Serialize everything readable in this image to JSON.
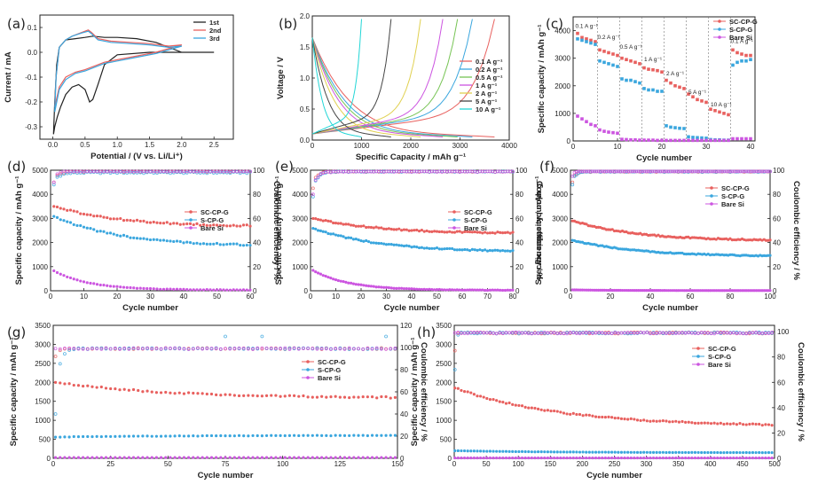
{
  "figure": {
    "panels": [
      "(a)",
      "(b)",
      "(c)",
      "(d)",
      "(e)",
      "(f)",
      "(g)",
      "(h)"
    ]
  },
  "colors": {
    "sc": "#e8605e",
    "s": "#3aa6de",
    "bare": "#cc55e0",
    "black": "#222222"
  },
  "chart_data": [
    {
      "id": "a",
      "type": "line",
      "xlabel": "Potential / (V vs. Li/Li⁺)",
      "ylabel": "Current / mA",
      "xlim": [
        -0.2,
        2.8
      ],
      "ylim": [
        -0.35,
        0.15
      ],
      "xticks": [
        "0.0",
        "0.5",
        "1.0",
        "1.5",
        "2.0",
        "2.5"
      ],
      "yticks": [
        "-0.3",
        "-0.2",
        "-0.1",
        "0.0",
        "0.1"
      ],
      "legend": [
        "1st",
        "2nd",
        "3rd"
      ],
      "series": [
        {
          "name": "1st",
          "color": "#222222",
          "x": [
            2.5,
            2.0,
            1.5,
            1.0,
            0.8,
            0.7,
            0.62,
            0.57,
            0.5,
            0.4,
            0.3,
            0.2,
            0.12,
            0.07,
            0.03,
            0.01,
            0.03,
            0.06,
            0.1,
            0.2,
            0.35,
            0.5,
            0.62,
            0.8,
            1.0,
            1.3,
            1.6,
            1.8,
            2.0
          ],
          "y": [
            0.0,
            0.0,
            0.0,
            -0.01,
            -0.05,
            -0.13,
            -0.19,
            -0.2,
            -0.15,
            -0.13,
            -0.14,
            -0.17,
            -0.22,
            -0.26,
            -0.3,
            -0.33,
            -0.2,
            -0.05,
            0.02,
            0.05,
            0.055,
            0.06,
            0.065,
            0.06,
            0.06,
            0.055,
            0.04,
            0.02,
            0.0
          ]
        },
        {
          "name": "2nd",
          "color": "#e8605e",
          "x": [
            2.0,
            1.6,
            1.2,
            0.8,
            0.5,
            0.35,
            0.2,
            0.1,
            0.03,
            0.05,
            0.1,
            0.2,
            0.3,
            0.45,
            0.55,
            0.6,
            0.7,
            0.9,
            1.2,
            1.5,
            1.8,
            2.0
          ],
          "y": [
            0.03,
            0.0,
            -0.02,
            -0.04,
            -0.07,
            -0.08,
            -0.1,
            -0.14,
            -0.22,
            -0.1,
            0.02,
            0.05,
            0.065,
            0.08,
            0.09,
            0.08,
            0.055,
            0.045,
            0.04,
            0.035,
            0.025,
            0.03
          ]
        },
        {
          "name": "3rd",
          "color": "#3aa6de",
          "x": [
            2.0,
            1.6,
            1.2,
            0.8,
            0.5,
            0.35,
            0.2,
            0.1,
            0.03,
            0.05,
            0.1,
            0.2,
            0.3,
            0.45,
            0.55,
            0.6,
            0.7,
            0.9,
            1.2,
            1.5,
            1.8,
            2.0
          ],
          "y": [
            0.025,
            -0.005,
            -0.025,
            -0.045,
            -0.075,
            -0.085,
            -0.11,
            -0.15,
            -0.24,
            -0.1,
            0.02,
            0.05,
            0.065,
            0.078,
            0.085,
            0.075,
            0.05,
            0.04,
            0.035,
            0.03,
            0.02,
            0.025
          ]
        }
      ]
    },
    {
      "id": "b",
      "type": "line",
      "xlabel": "Specific Capacity / mAh g⁻¹",
      "ylabel": "Voltage / V",
      "xlim": [
        0,
        4000
      ],
      "ylim": [
        0,
        2.0
      ],
      "xticks": [
        "0",
        "1000",
        "2000",
        "3000",
        "4000"
      ],
      "yticks": [
        "0.0",
        "0.5",
        "1.0",
        "1.5",
        "2.0"
      ],
      "legend": [
        "0.1 A g⁻¹",
        "0.2 A g⁻¹",
        "0.5 A g⁻¹",
        "1 A g⁻¹",
        "2 A g⁻¹",
        "5 A g⁻¹",
        "10 A g⁻¹"
      ],
      "series": [
        {
          "name": "0.1 A g⁻¹",
          "color": "#e8605e",
          "capacity": 3700
        },
        {
          "name": "0.2 A g⁻¹",
          "color": "#3aa6de",
          "capacity": 3250
        },
        {
          "name": "0.5 A g⁻¹",
          "color": "#77c455",
          "capacity": 2950
        },
        {
          "name": "1 A g⁻¹",
          "color": "#cc55e0",
          "capacity": 2650
        },
        {
          "name": "2 A g⁻¹",
          "color": "#e0d050",
          "capacity": 2200
        },
        {
          "name": "5 A g⁻¹",
          "color": "#444444",
          "capacity": 1600
        },
        {
          "name": "10 A g⁻¹",
          "color": "#22d6d6",
          "capacity": 1000
        }
      ]
    },
    {
      "id": "c",
      "type": "scatter",
      "xlabel": "Cycle number",
      "ylabel": "Specific capacity / mAh g⁻¹",
      "xlim": [
        0,
        41
      ],
      "ylim": [
        0,
        4500
      ],
      "xticks": [
        "0",
        "10",
        "20",
        "30",
        "40"
      ],
      "yticks": [
        "0",
        "1000",
        "2000",
        "3000",
        "4000"
      ],
      "legend": [
        "SC-CP-G",
        "S-CP-G",
        "Bare Si"
      ],
      "annotations": [
        "0.1 A g⁻¹",
        "0.2 A g⁻¹",
        "0.5 A g⁻¹",
        "1 A g⁻¹",
        "2 A g⁻¹",
        "5 A g⁻¹",
        "10 A g⁻¹",
        "0.1 A g⁻¹"
      ],
      "series": [
        {
          "name": "SC-CP-G",
          "color": "#e8605e",
          "y": [
            3900,
            3750,
            3700,
            3650,
            3600,
            3300,
            3250,
            3200,
            3150,
            3100,
            3000,
            2950,
            2900,
            2850,
            2800,
            2650,
            2600,
            2580,
            2550,
            2500,
            2200,
            2100,
            2000,
            1950,
            1900,
            1700,
            1600,
            1500,
            1450,
            1400,
            1150,
            1100,
            1050,
            1000,
            950,
            3300,
            3200,
            3150,
            3100,
            3100
          ]
        },
        {
          "name": "S-CP-G",
          "color": "#3aa6de",
          "y": [
            3700,
            3650,
            3600,
            3550,
            3500,
            2900,
            2850,
            2800,
            2750,
            2700,
            2250,
            2200,
            2200,
            2150,
            2100,
            1900,
            1850,
            1850,
            1800,
            1800,
            550,
            500,
            480,
            460,
            450,
            150,
            130,
            120,
            110,
            100,
            50,
            40,
            40,
            30,
            30,
            2750,
            2850,
            2900,
            2900,
            2950
          ]
        },
        {
          "name": "Bare Si",
          "color": "#cc55e0",
          "y": [
            900,
            800,
            700,
            600,
            550,
            400,
            350,
            320,
            300,
            280,
            60,
            50,
            40,
            40,
            30,
            30,
            30,
            30,
            20,
            20,
            20,
            20,
            20,
            20,
            20,
            20,
            20,
            20,
            20,
            20,
            20,
            20,
            20,
            20,
            20,
            80,
            80,
            80,
            80,
            80
          ]
        }
      ]
    },
    {
      "id": "d",
      "type": "scatter",
      "xlabel": "Cycle number",
      "ylabel": "Specific capacity / mAh g⁻¹",
      "y2label": "Coulombic efficiency / %",
      "xlim": [
        0,
        60
      ],
      "ylim": [
        0,
        5000
      ],
      "y2lim": [
        0,
        100
      ],
      "xticks": [
        "0",
        "10",
        "20",
        "30",
        "40",
        "50",
        "60"
      ],
      "yticks": [
        "0",
        "1000",
        "2000",
        "3000",
        "4000",
        "5000"
      ],
      "y2ticks": [
        "0",
        "20",
        "40",
        "60",
        "80",
        "100"
      ],
      "legend": [
        "SC-CP-G",
        "S-CP-G",
        "Bare Si"
      ],
      "capacity": {
        "SC-CP-G": [
          3500,
          2700
        ],
        "S-CP-G": [
          3100,
          1900
        ],
        "Bare Si": [
          900,
          30
        ]
      },
      "efficiency": {
        "SC-CP-G": [
          90,
          99
        ],
        "S-CP-G": [
          88,
          98
        ],
        "Bare Si": [
          90,
          101
        ]
      }
    },
    {
      "id": "e",
      "type": "scatter",
      "xlabel": "Cycle number",
      "ylabel": "Specific capacity / mAh g⁻¹",
      "y2label": "Coulombic efficiency / %",
      "xlim": [
        0,
        80
      ],
      "ylim": [
        0,
        5000
      ],
      "y2lim": [
        0,
        100
      ],
      "xticks": [
        "0",
        "10",
        "20",
        "30",
        "40",
        "50",
        "60",
        "70",
        "80"
      ],
      "yticks": [
        "0",
        "1000",
        "2000",
        "3000",
        "4000",
        "5000"
      ],
      "y2ticks": [
        "0",
        "20",
        "40",
        "60",
        "80",
        "100"
      ],
      "legend": [
        "SC-CP-G",
        "S-CP-G",
        "Bare Si"
      ],
      "capacity": {
        "SC-CP-G": [
          3000,
          2400
        ],
        "S-CP-G": [
          2600,
          1650
        ],
        "Bare Si": [
          900,
          20
        ]
      },
      "efficiency": {
        "SC-CP-G": [
          85,
          99
        ],
        "S-CP-G": [
          78,
          99
        ],
        "Bare Si": [
          80,
          99
        ]
      }
    },
    {
      "id": "f",
      "type": "scatter",
      "xlabel": "Cycle number",
      "ylabel": "Specific capacity / mAh g⁻¹",
      "y2label": "Coulombic efficiency / %",
      "xlim": [
        0,
        100
      ],
      "ylim": [
        0,
        5000
      ],
      "y2lim": [
        0,
        100
      ],
      "xticks": [
        "0",
        "20",
        "40",
        "60",
        "80",
        "100"
      ],
      "yticks": [
        "0",
        "1000",
        "2000",
        "3000",
        "4000",
        "5000"
      ],
      "y2ticks": [
        "0",
        "20",
        "40",
        "60",
        "80",
        "100"
      ],
      "legend": [
        "SC-CP-G",
        "S-CP-G",
        "Bare Si"
      ],
      "capacity": {
        "SC-CP-G": [
          2900,
          2100
        ],
        "S-CP-G": [
          2100,
          1450
        ],
        "Bare Si": [
          40,
          10
        ]
      },
      "efficiency": {
        "SC-CP-G": [
          90,
          99
        ],
        "S-CP-G": [
          88,
          99
        ],
        "Bare Si": [
          95,
          100
        ]
      }
    },
    {
      "id": "g",
      "type": "scatter",
      "xlabel": "Cycle number",
      "ylabel": "Specific capacity / mAh g⁻¹",
      "y2label": "Coulombic efficiency / %",
      "xlim": [
        0,
        150
      ],
      "ylim": [
        0,
        3500
      ],
      "y2lim": [
        0,
        120
      ],
      "xticks": [
        "0",
        "25",
        "50",
        "75",
        "100",
        "125",
        "150"
      ],
      "yticks": [
        "0",
        "500",
        "1000",
        "1500",
        "2000",
        "2500",
        "3000",
        "3500"
      ],
      "y2ticks": [
        "0",
        "20",
        "40",
        "60",
        "80",
        "100",
        "120"
      ],
      "legend": [
        "SC-CP-G",
        "S-CP-G",
        "Bare Si"
      ],
      "capacity": {
        "SC-CP-G": [
          2000,
          1600
        ],
        "S-CP-G": [
          560,
          600
        ],
        "Bare Si": [
          20,
          20
        ]
      },
      "efficiency": {
        "SC-CP-G": [
          92,
          99
        ],
        "S-CP-G": [
          40,
          99
        ],
        "Bare Si": [
          99,
          99
        ]
      }
    },
    {
      "id": "h",
      "type": "scatter",
      "xlabel": "Cycle number",
      "ylabel": "Specific capacity / mAh g⁻¹",
      "y2label": "Coulombic efficiency / %",
      "xlim": [
        0,
        500
      ],
      "ylim": [
        0,
        3500
      ],
      "y2lim": [
        0,
        105
      ],
      "xticks": [
        "0",
        "50",
        "100",
        "150",
        "200",
        "250",
        "300",
        "350",
        "400",
        "450",
        "500"
      ],
      "yticks": [
        "0",
        "500",
        "1000",
        "1500",
        "2000",
        "2500",
        "3000",
        "3500"
      ],
      "y2ticks": [
        "0",
        "20",
        "40",
        "60",
        "80",
        "100"
      ],
      "legend": [
        "SC-CP-G",
        "S-CP-G",
        "Bare Si"
      ],
      "capacity": {
        "SC-CP-G": [
          1850,
          880
        ],
        "S-CP-G": [
          200,
          150
        ],
        "Bare Si": [
          10,
          10
        ]
      },
      "efficiency": {
        "SC-CP-G": [
          85,
          99
        ],
        "S-CP-G": [
          70,
          99
        ],
        "Bare Si": [
          99,
          99
        ]
      }
    }
  ]
}
